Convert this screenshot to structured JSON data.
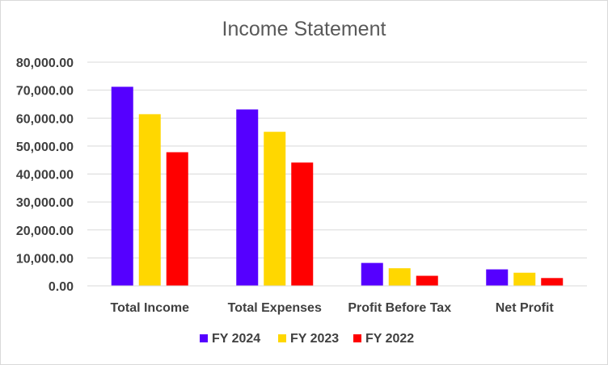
{
  "chart_data": {
    "type": "bar",
    "title": "Income Statement",
    "categories": [
      "Total Income",
      "Total Expenses",
      "Profit Before Tax",
      "Net Profit"
    ],
    "series": [
      {
        "name": "FY 2024",
        "color": "#5500ff",
        "values": [
          71200,
          63100,
          8200,
          5900
        ]
      },
      {
        "name": "FY 2023",
        "color": "#ffd700",
        "values": [
          61400,
          55100,
          6300,
          4700
        ]
      },
      {
        "name": "FY 2022",
        "color": "#ff0000",
        "values": [
          47800,
          44100,
          3600,
          2800
        ]
      }
    ],
    "yticks": [
      "0.00",
      "10,000.00",
      "20,000.00",
      "30,000.00",
      "40,000.00",
      "50,000.00",
      "60,000.00",
      "70,000.00",
      "80,000.00"
    ],
    "ylim": [
      0,
      80000
    ],
    "grid": true,
    "legend": "bottom"
  }
}
